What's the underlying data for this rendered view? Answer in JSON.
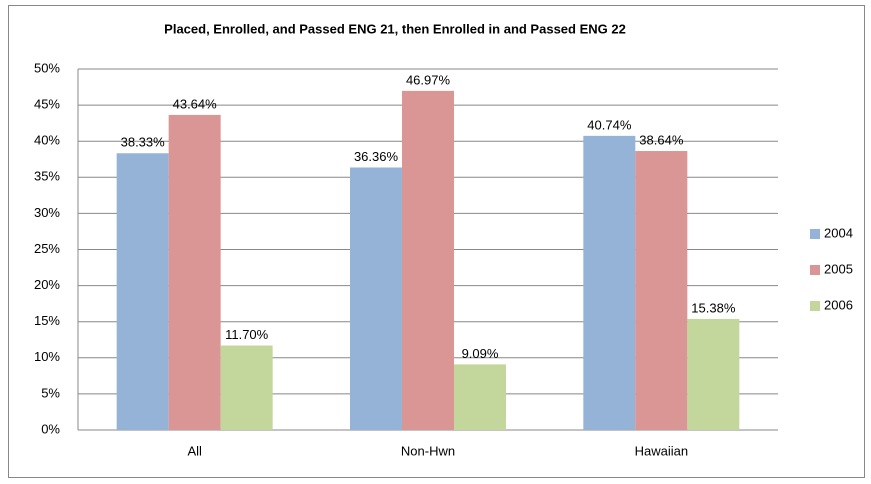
{
  "chart_data": {
    "type": "bar",
    "title": "Placed, Enrolled, and Passed ENG 21, then Enrolled in and Passed ENG 22",
    "categories": [
      "All",
      "Non-Hwn",
      "Hawaiian"
    ],
    "series": [
      {
        "name": "2004",
        "color": "#95b3d7",
        "values": [
          38.33,
          36.36,
          40.74
        ],
        "value_labels": [
          "38.33%",
          "36.36%",
          "40.74%"
        ]
      },
      {
        "name": "2005",
        "color": "#d99694",
        "values": [
          43.64,
          46.97,
          38.64
        ],
        "value_labels": [
          "43.64%",
          "46.97%",
          "38.64%"
        ]
      },
      {
        "name": "2006",
        "color": "#c3d69b",
        "values": [
          11.7,
          9.09,
          15.38
        ],
        "value_labels": [
          "11.70%",
          "9.09%",
          "15.38%"
        ]
      }
    ],
    "ylim": [
      0,
      50
    ],
    "yticks": [
      {
        "value": 0,
        "label": "0%"
      },
      {
        "value": 5,
        "label": "5%"
      },
      {
        "value": 10,
        "label": "10%"
      },
      {
        "value": 15,
        "label": "15%"
      },
      {
        "value": 20,
        "label": "20%"
      },
      {
        "value": 25,
        "label": "25%"
      },
      {
        "value": 30,
        "label": "30%"
      },
      {
        "value": 35,
        "label": "35%"
      },
      {
        "value": 40,
        "label": "40%"
      },
      {
        "value": 45,
        "label": "45%"
      },
      {
        "value": 50,
        "label": "50%"
      }
    ],
    "grid": true,
    "legend": "right"
  }
}
